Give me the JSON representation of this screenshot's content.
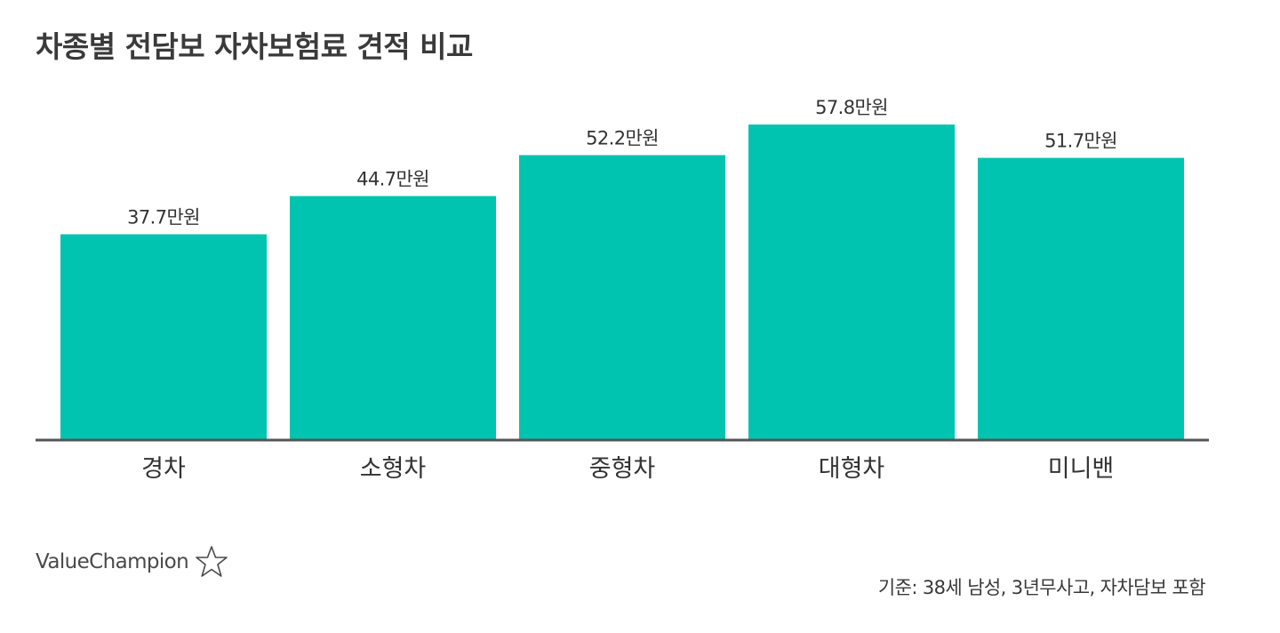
{
  "title": "차종별 전담보 자차보험료 견적 비교",
  "footnote": "기준: 38세 남성, 3년무사고, 자차담보 포함",
  "logo": {
    "text": "ValueChampion",
    "icon": "star-outline-icon"
  },
  "colors": {
    "bar": "#00C4AF",
    "axis": "#555555",
    "text": "#333333"
  },
  "chart_data": {
    "type": "bar",
    "categories": [
      "경차",
      "소형차",
      "중형차",
      "대형차",
      "미니밴"
    ],
    "values": [
      37.7,
      44.7,
      52.2,
      57.8,
      51.7
    ],
    "value_labels": [
      "37.7만원",
      "44.7만원",
      "52.2만원",
      "57.8만원",
      "51.7만원"
    ],
    "title": "차종별 전담보 자차보험료 견적 비교",
    "xlabel": "",
    "ylabel": "",
    "ylim": [
      0,
      61.4
    ],
    "grid": false,
    "legend": "none"
  }
}
